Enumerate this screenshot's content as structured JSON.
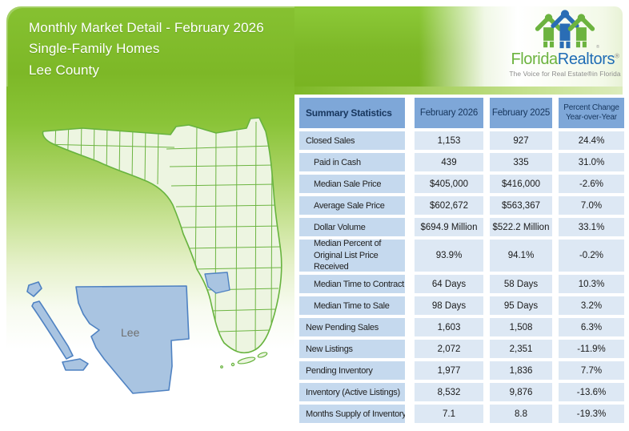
{
  "header": {
    "title_line1": "Monthly Market Detail - February 2026",
    "title_line2": "Single-Family Homes",
    "title_line3": "Lee County"
  },
  "logo": {
    "brand_part1": "Florida",
    "brand_part2": "Realtors",
    "registered_mark": "®",
    "icon_registered_mark": "®",
    "tagline": "The Voice for Real Estate®in Florida"
  },
  "map": {
    "county_label": "Lee"
  },
  "table": {
    "header": {
      "col1": "Summary Statistics",
      "col2": "February 2026",
      "col3": "February 2025",
      "col4_line1": "Percent Change",
      "col4_line2": "Year-over-Year"
    },
    "rows": [
      {
        "label": "Closed Sales",
        "indent": 0,
        "tall": false,
        "feb2026": "1,153",
        "feb2025": "927",
        "pct": "24.4%"
      },
      {
        "label": "Paid in Cash",
        "indent": 1,
        "tall": false,
        "feb2026": "439",
        "feb2025": "335",
        "pct": "31.0%"
      },
      {
        "label": "Median Sale Price",
        "indent": 1,
        "tall": false,
        "feb2026": "$405,000",
        "feb2025": "$416,000",
        "pct": "-2.6%"
      },
      {
        "label": "Average Sale Price",
        "indent": 1,
        "tall": false,
        "feb2026": "$602,672",
        "feb2025": "$563,367",
        "pct": "7.0%"
      },
      {
        "label": "Dollar Volume",
        "indent": 1,
        "tall": false,
        "feb2026": "$694.9 Million",
        "feb2025": "$522.2 Million",
        "pct": "33.1%"
      },
      {
        "label": "Median Percent of Original List Price Received",
        "indent": 1,
        "tall": true,
        "feb2026": "93.9%",
        "feb2025": "94.1%",
        "pct": "-0.2%"
      },
      {
        "label": "Median Time to Contract",
        "indent": 1,
        "tall": false,
        "feb2026": "64 Days",
        "feb2025": "58 Days",
        "pct": "10.3%"
      },
      {
        "label": "Median Time to Sale",
        "indent": 1,
        "tall": false,
        "feb2026": "98 Days",
        "feb2025": "95 Days",
        "pct": "3.2%"
      },
      {
        "label": "New Pending Sales",
        "indent": 0,
        "tall": false,
        "feb2026": "1,603",
        "feb2025": "1,508",
        "pct": "6.3%"
      },
      {
        "label": "New Listings",
        "indent": 0,
        "tall": false,
        "feb2026": "2,072",
        "feb2025": "2,351",
        "pct": "-11.9%"
      },
      {
        "label": "Pending Inventory",
        "indent": 0,
        "tall": false,
        "feb2026": "1,977",
        "feb2025": "1,836",
        "pct": "7.7%"
      },
      {
        "label": "Inventory (Active Listings)",
        "indent": 0,
        "tall": false,
        "feb2026": "8,532",
        "feb2025": "9,876",
        "pct": "-13.6%"
      },
      {
        "label": "Months Supply of Inventory",
        "indent": 0,
        "tall": false,
        "feb2026": "7.1",
        "feb2025": "8.8",
        "pct": "-19.3%"
      }
    ]
  },
  "colors": {
    "brand_green": "#7db827",
    "brand_blue": "#1f6cb5",
    "logo_green": "#6cb33f",
    "table_header_bg": "#7ea7d8",
    "table_label_bg": "#c5d9ee",
    "table_value_bg": "#dde8f4",
    "table_header_text": "#17365d",
    "county_highlight_fill": "#a9c4e1",
    "county_highlight_stroke": "#4f82c2",
    "state_fill": "#edf5e1",
    "state_stroke": "#67b33e"
  }
}
